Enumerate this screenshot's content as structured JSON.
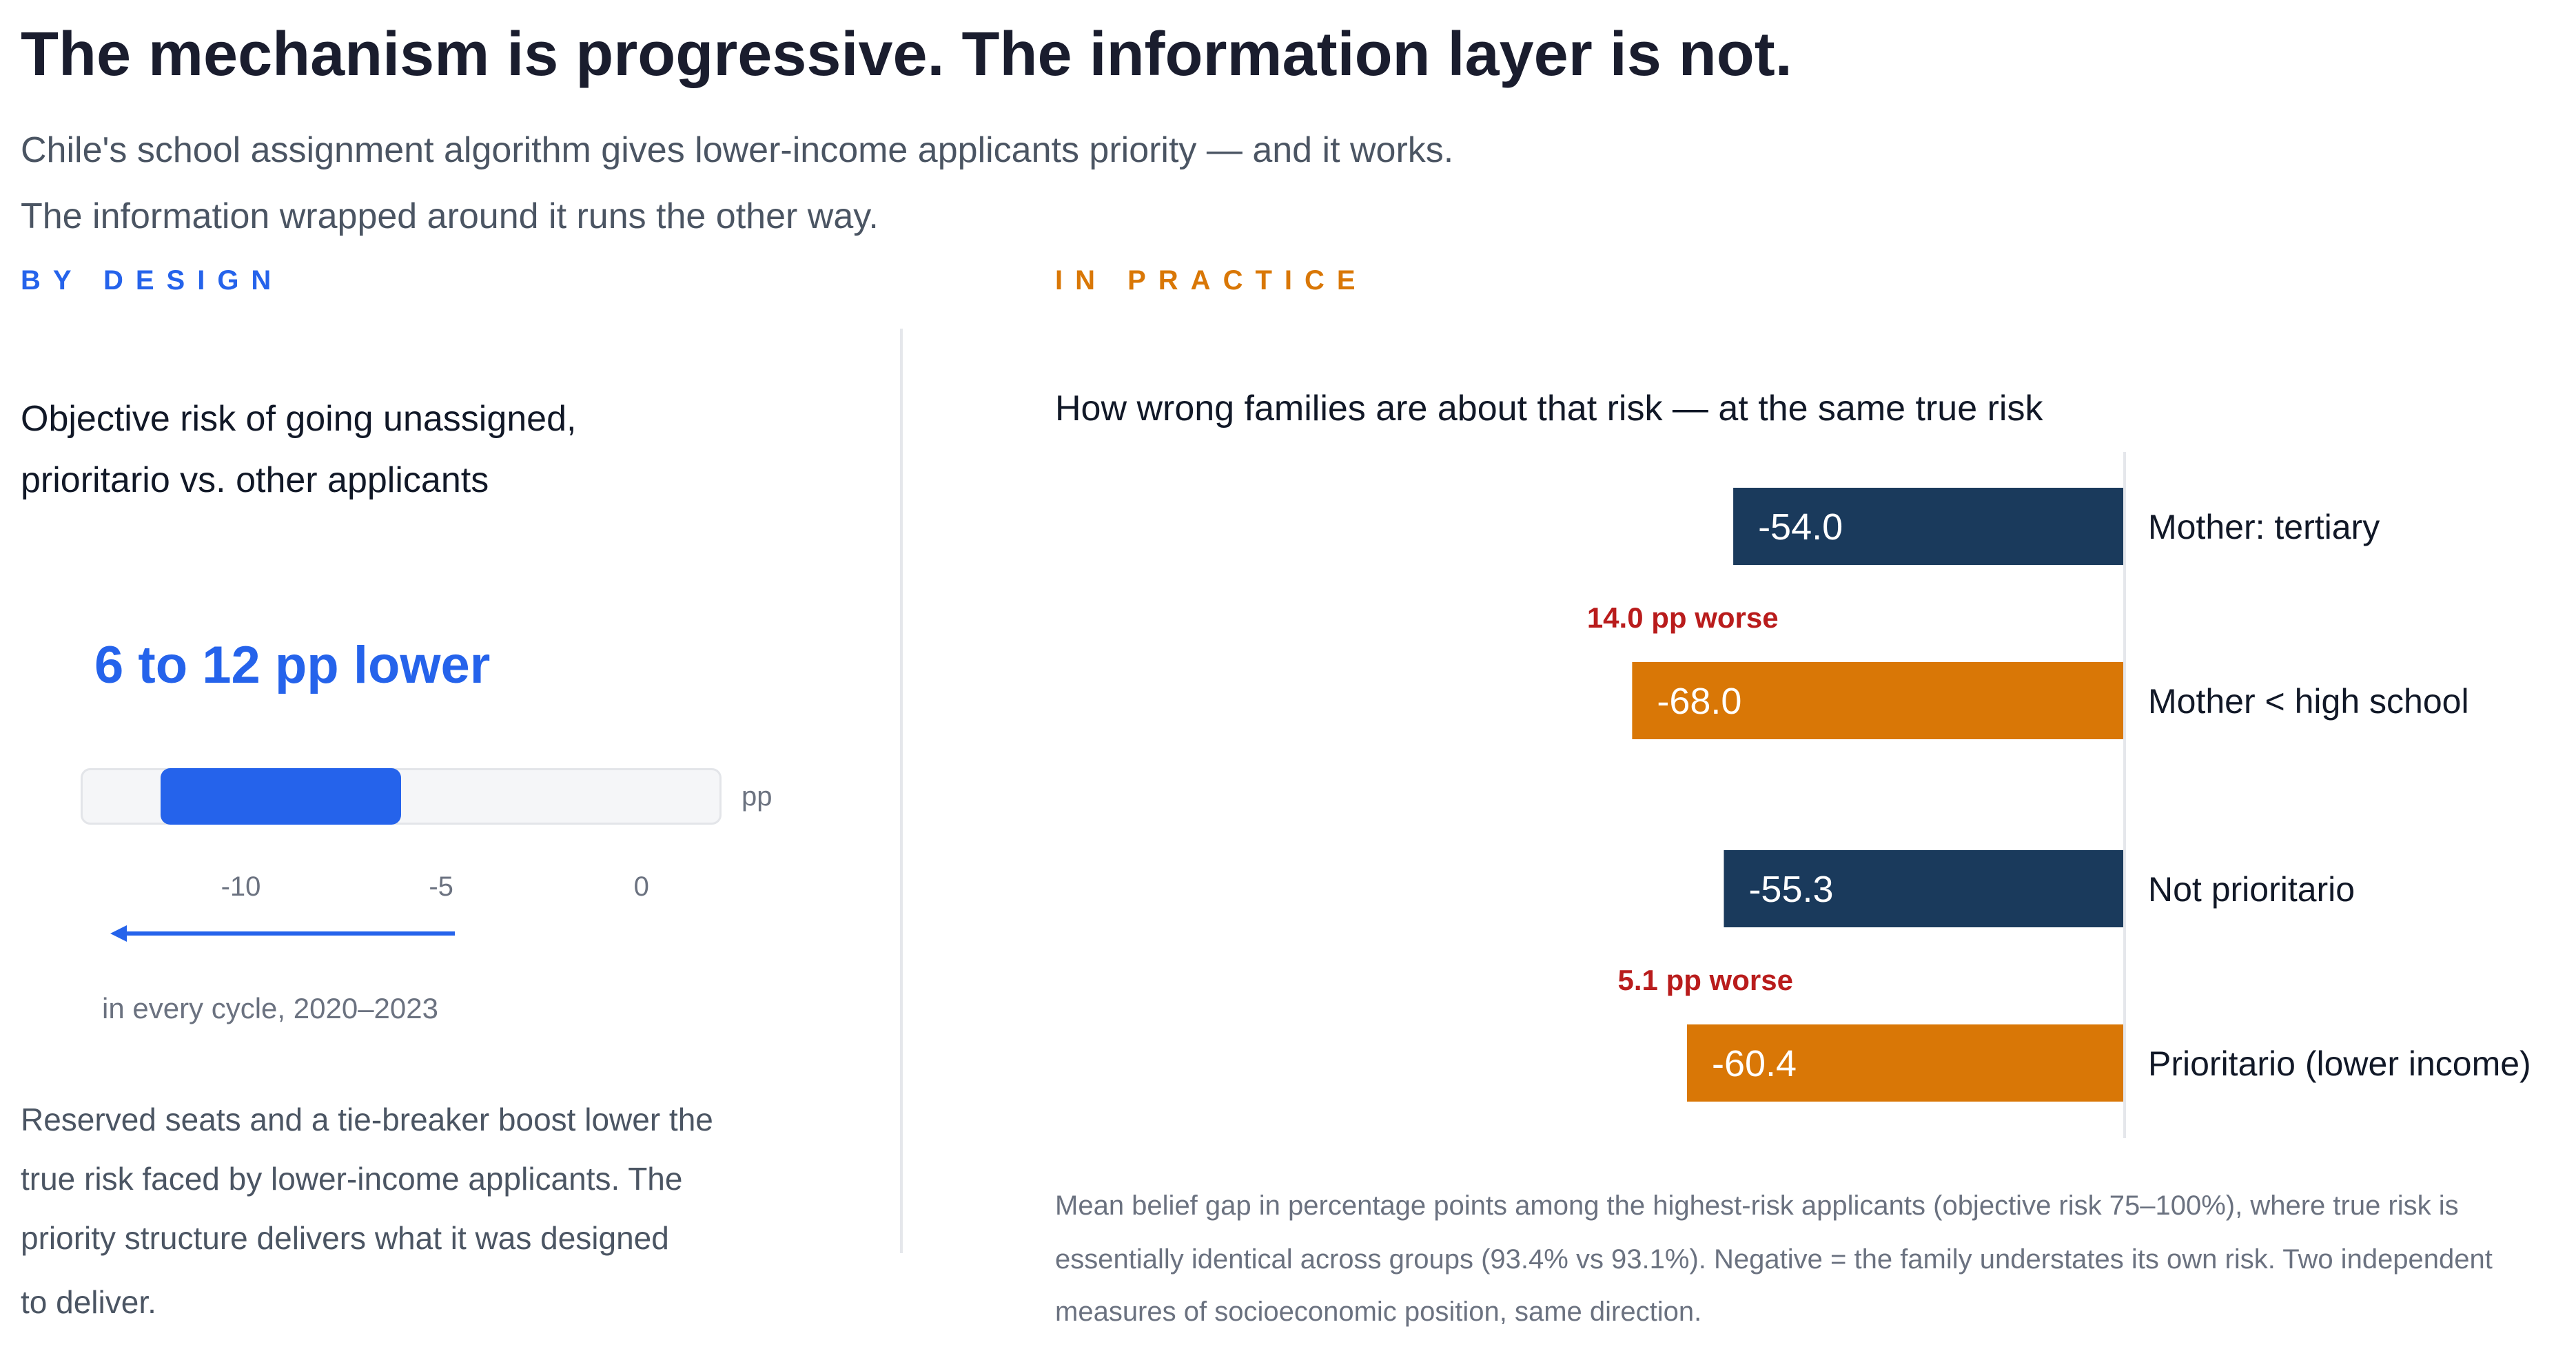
{
  "header": {
    "title": "The mechanism is progressive. The information layer is not.",
    "subtitle_line1": "Chile's school assignment algorithm gives lower-income applicants priority — and it works.",
    "subtitle_line2": "The information wrapped around it runs the other way."
  },
  "colors": {
    "design_blue": "#2563eb",
    "practice_orange": "#d97706",
    "navy": "#1a3a5c",
    "worse_red": "#b91c1c"
  },
  "left": {
    "kicker": "BY DESIGN",
    "question_line1": "Objective risk of going unassigned,",
    "question_line2": "prioritario vs. other applicants",
    "headline": "6 to 12 pp lower",
    "unit": "pp",
    "range": {
      "min": -12,
      "max": -6,
      "axis_min": -14,
      "axis_max": 2
    },
    "ticks": [
      "-10",
      "-5",
      "0"
    ],
    "tick_values": [
      -10,
      -5,
      0
    ],
    "cycle_note": "in every cycle, 2020–2023",
    "para_line1": "Reserved seats and a tie-breaker boost lower the",
    "para_line2": "true risk faced by lower-income applicants. The",
    "para_line3": "priority structure delivers what it was designed",
    "para_line4": "to deliver."
  },
  "right": {
    "kicker": "IN PRACTICE",
    "question": "How wrong families are about that risk — at the same true risk",
    "footnote_line1": "Mean belief gap in percentage points among the highest-risk applicants (objective risk 75–100%), where true risk is",
    "footnote_line2": "essentially identical across groups (93.4% vs 93.1%). Negative = the family understates its own risk. Two independent",
    "footnote_line3": "measures of socioeconomic position, same direction."
  },
  "chart_data": {
    "type": "bar",
    "orientation": "horizontal",
    "title": "How wrong families are about that risk — at the same true risk",
    "categories": [
      "Mother: tertiary",
      "Mother < high school",
      "Not prioritario",
      "Prioritario (lower income)"
    ],
    "values": [
      -54.0,
      -68.0,
      -55.3,
      -60.4
    ],
    "value_labels": [
      "-54.0",
      "-68.0",
      "-55.3",
      "-60.4"
    ],
    "groups": [
      "navy",
      "orange",
      "navy",
      "orange"
    ],
    "annotations": [
      {
        "text": "14.0 pp worse",
        "above_category": "Mother < high school"
      },
      {
        "text": "5.1 pp worse",
        "above_category": "Prioritario (lower income)"
      }
    ],
    "xlim": [
      -75,
      0
    ],
    "grid": false,
    "legend": "none"
  }
}
